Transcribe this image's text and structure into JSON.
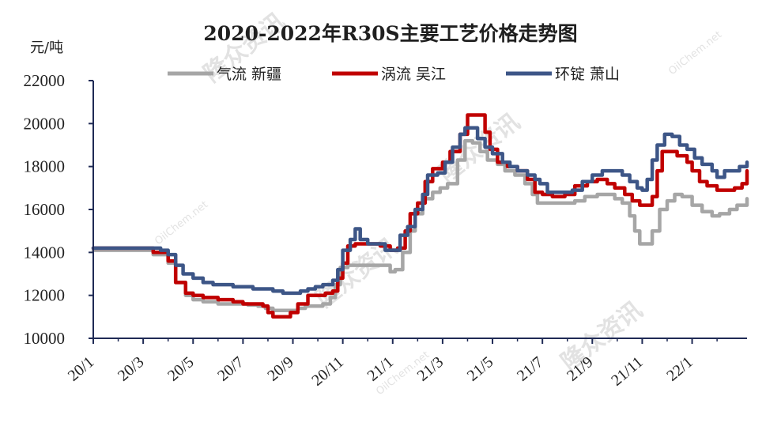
{
  "chart_data": {
    "type": "line",
    "title": "2020-2022年R30S主要工艺价格走势图",
    "ylabel": "元/吨",
    "ylim": [
      10000,
      22000
    ],
    "yticks": [
      "22000",
      "20000",
      "18000",
      "16000",
      "14000",
      "12000",
      "10000"
    ],
    "x_range_months": [
      0,
      26.2
    ],
    "xticks": [
      "20/1",
      "20/3",
      "20/5",
      "20/7",
      "20/9",
      "20/11",
      "21/1",
      "21/3",
      "21/5",
      "21/7",
      "21/9",
      "21/11",
      "22/1"
    ],
    "legend_position": "top",
    "series": [
      {
        "name": "气流  新疆",
        "color": "#a6a6a6",
        "points": [
          [
            0,
            14100
          ],
          [
            2.4,
            13900
          ],
          [
            2.7,
            13900
          ],
          [
            3,
            13500
          ],
          [
            3.3,
            12600
          ],
          [
            3.7,
            12000
          ],
          [
            4,
            11800
          ],
          [
            4.4,
            11700
          ],
          [
            5,
            11600
          ],
          [
            5.7,
            11600
          ],
          [
            6.2,
            11550
          ],
          [
            6.6,
            11500
          ],
          [
            6.9,
            11400
          ],
          [
            7.2,
            11300
          ],
          [
            7.8,
            11300
          ],
          [
            8.2,
            11400
          ],
          [
            8.5,
            11500
          ],
          [
            8.9,
            11500
          ],
          [
            9.2,
            11600
          ],
          [
            9.5,
            11900
          ],
          [
            9.7,
            12500
          ],
          [
            9.9,
            13300
          ],
          [
            10.2,
            13400
          ],
          [
            11,
            13400
          ],
          [
            11.6,
            13400
          ],
          [
            11.9,
            13100
          ],
          [
            12.1,
            13200
          ],
          [
            12.4,
            14000
          ],
          [
            12.7,
            15000
          ],
          [
            12.9,
            15800
          ],
          [
            13.2,
            16500
          ],
          [
            13.6,
            16800
          ],
          [
            13.9,
            17000
          ],
          [
            14.2,
            17200
          ],
          [
            14.6,
            18300
          ],
          [
            14.9,
            19200
          ],
          [
            15.2,
            19100
          ],
          [
            15.5,
            18700
          ],
          [
            15.8,
            18300
          ],
          [
            16.2,
            18100
          ],
          [
            16.5,
            17800
          ],
          [
            16.9,
            17600
          ],
          [
            17.3,
            17200
          ],
          [
            17.6,
            16700
          ],
          [
            17.8,
            16300
          ],
          [
            18.1,
            16300
          ],
          [
            18.5,
            16300
          ],
          [
            18.9,
            16300
          ],
          [
            19.3,
            16400
          ],
          [
            19.7,
            16600
          ],
          [
            20.2,
            16700
          ],
          [
            20.6,
            16700
          ],
          [
            20.9,
            16500
          ],
          [
            21.2,
            16300
          ],
          [
            21.5,
            15700
          ],
          [
            21.7,
            15000
          ],
          [
            21.9,
            14400
          ],
          [
            22.2,
            14400
          ],
          [
            22.4,
            15000
          ],
          [
            22.7,
            16000
          ],
          [
            23,
            16400
          ],
          [
            23.3,
            16700
          ],
          [
            23.6,
            16600
          ],
          [
            24,
            16200
          ],
          [
            24.4,
            15900
          ],
          [
            24.8,
            15700
          ],
          [
            25.1,
            15800
          ],
          [
            25.5,
            16000
          ],
          [
            25.8,
            16200
          ],
          [
            26.2,
            16500
          ]
        ]
      },
      {
        "name": "涡流  吴江",
        "color": "#c00000",
        "points": [
          [
            0,
            14200
          ],
          [
            2.4,
            14000
          ],
          [
            2.7,
            14000
          ],
          [
            3,
            13600
          ],
          [
            3.3,
            12600
          ],
          [
            3.7,
            12100
          ],
          [
            4,
            12000
          ],
          [
            4.4,
            11900
          ],
          [
            5,
            11800
          ],
          [
            5.6,
            11700
          ],
          [
            6,
            11600
          ],
          [
            6.4,
            11600
          ],
          [
            6.8,
            11500
          ],
          [
            7,
            11200
          ],
          [
            7.2,
            11000
          ],
          [
            7.6,
            11000
          ],
          [
            7.9,
            11200
          ],
          [
            8.2,
            11600
          ],
          [
            8.6,
            12000
          ],
          [
            9,
            12000
          ],
          [
            9.3,
            12100
          ],
          [
            9.6,
            12200
          ],
          [
            9.8,
            12800
          ],
          [
            10,
            13500
          ],
          [
            10.2,
            14300
          ],
          [
            10.5,
            14400
          ],
          [
            11,
            14400
          ],
          [
            11.5,
            14300
          ],
          [
            11.9,
            14100
          ],
          [
            12.2,
            14200
          ],
          [
            12.5,
            15000
          ],
          [
            12.7,
            15800
          ],
          [
            13,
            16300
          ],
          [
            13.3,
            17300
          ],
          [
            13.6,
            17900
          ],
          [
            14,
            18200
          ],
          [
            14.3,
            18700
          ],
          [
            14.7,
            19500
          ],
          [
            15,
            20400
          ],
          [
            15.4,
            20400
          ],
          [
            15.7,
            19600
          ],
          [
            15.9,
            18800
          ],
          [
            16.2,
            18200
          ],
          [
            16.6,
            18000
          ],
          [
            17,
            17800
          ],
          [
            17.4,
            17400
          ],
          [
            17.7,
            16800
          ],
          [
            18,
            16700
          ],
          [
            18.4,
            16600
          ],
          [
            18.9,
            16700
          ],
          [
            19.3,
            17100
          ],
          [
            19.8,
            17300
          ],
          [
            20.2,
            17400
          ],
          [
            20.6,
            17200
          ],
          [
            20.9,
            17000
          ],
          [
            21.3,
            16700
          ],
          [
            21.6,
            16400
          ],
          [
            21.9,
            16200
          ],
          [
            22.2,
            16200
          ],
          [
            22.4,
            16600
          ],
          [
            22.6,
            17800
          ],
          [
            22.8,
            18700
          ],
          [
            23.1,
            18700
          ],
          [
            23.4,
            18500
          ],
          [
            23.8,
            18200
          ],
          [
            24,
            17800
          ],
          [
            24.3,
            17300
          ],
          [
            24.6,
            17100
          ],
          [
            25,
            16900
          ],
          [
            25.4,
            16900
          ],
          [
            25.7,
            17000
          ],
          [
            26,
            17200
          ],
          [
            26.2,
            17800
          ]
        ]
      },
      {
        "name": "环锭  萧山",
        "color": "#3d5687",
        "points": [
          [
            0,
            14200
          ],
          [
            2.4,
            14200
          ],
          [
            2.7,
            14100
          ],
          [
            3,
            13900
          ],
          [
            3.3,
            13400
          ],
          [
            3.6,
            13000
          ],
          [
            4,
            12800
          ],
          [
            4.4,
            12600
          ],
          [
            4.8,
            12500
          ],
          [
            5.2,
            12500
          ],
          [
            5.6,
            12400
          ],
          [
            6,
            12400
          ],
          [
            6.4,
            12300
          ],
          [
            6.8,
            12300
          ],
          [
            7.2,
            12200
          ],
          [
            7.6,
            12100
          ],
          [
            8,
            12100
          ],
          [
            8.3,
            12200
          ],
          [
            8.6,
            12300
          ],
          [
            8.9,
            12400
          ],
          [
            9.2,
            12500
          ],
          [
            9.6,
            12700
          ],
          [
            9.8,
            13200
          ],
          [
            10,
            14100
          ],
          [
            10.3,
            14600
          ],
          [
            10.5,
            15100
          ],
          [
            10.7,
            14600
          ],
          [
            11,
            14400
          ],
          [
            11.4,
            14400
          ],
          [
            11.7,
            14100
          ],
          [
            12,
            14100
          ],
          [
            12.3,
            14800
          ],
          [
            12.6,
            15200
          ],
          [
            12.9,
            16000
          ],
          [
            13.2,
            16700
          ],
          [
            13.4,
            17600
          ],
          [
            13.8,
            17700
          ],
          [
            14.1,
            18200
          ],
          [
            14.4,
            18900
          ],
          [
            14.7,
            19500
          ],
          [
            14.9,
            19800
          ],
          [
            15.2,
            19800
          ],
          [
            15.4,
            19300
          ],
          [
            15.7,
            18900
          ],
          [
            16,
            18600
          ],
          [
            16.4,
            18200
          ],
          [
            16.7,
            18000
          ],
          [
            17,
            17800
          ],
          [
            17.4,
            17600
          ],
          [
            17.7,
            17400
          ],
          [
            17.9,
            17200
          ],
          [
            18.2,
            16800
          ],
          [
            18.8,
            16800
          ],
          [
            19.2,
            16900
          ],
          [
            19.6,
            17300
          ],
          [
            20,
            17600
          ],
          [
            20.4,
            17800
          ],
          [
            20.8,
            17800
          ],
          [
            21.2,
            17600
          ],
          [
            21.5,
            17300
          ],
          [
            21.8,
            17000
          ],
          [
            22,
            16900
          ],
          [
            22.2,
            17400
          ],
          [
            22.4,
            18300
          ],
          [
            22.6,
            19000
          ],
          [
            22.9,
            19500
          ],
          [
            23.2,
            19400
          ],
          [
            23.5,
            19000
          ],
          [
            23.8,
            18800
          ],
          [
            24.1,
            18400
          ],
          [
            24.4,
            18100
          ],
          [
            24.8,
            17800
          ],
          [
            25,
            17500
          ],
          [
            25.3,
            17800
          ],
          [
            25.6,
            17800
          ],
          [
            25.9,
            18000
          ],
          [
            26.2,
            18200
          ]
        ]
      }
    ],
    "watermarks": [
      "隆众资讯",
      "隆众资讯",
      "隆众资讯",
      "隆众资讯",
      "OilChem.net",
      "OilChem.net",
      "OilChem.net"
    ]
  }
}
